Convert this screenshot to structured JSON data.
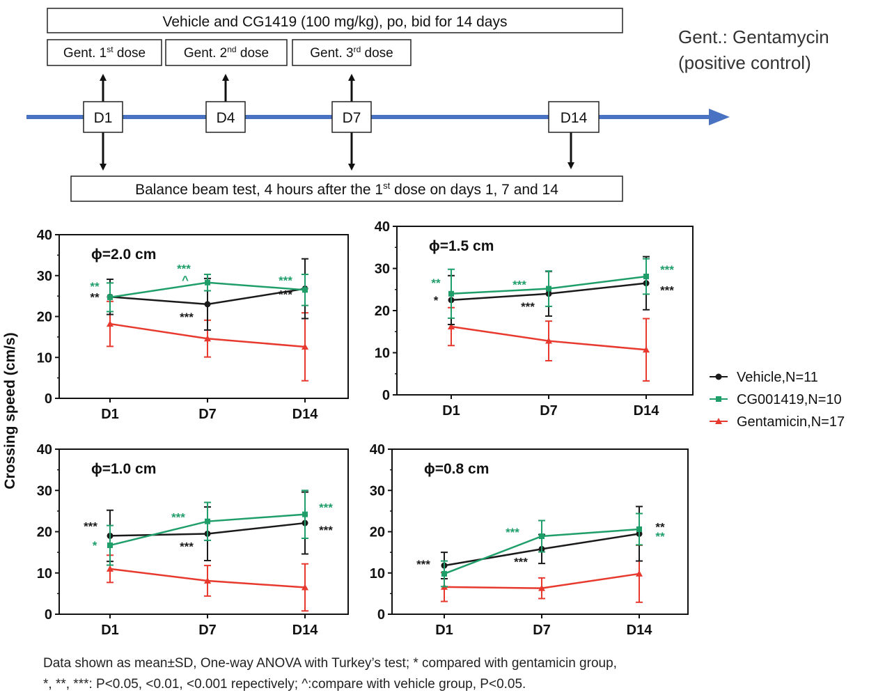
{
  "colors": {
    "vehicle": "#1a1a1a",
    "cg": "#1f9e6a",
    "gent": "#e8392e",
    "timeline": "#4a72c2"
  },
  "protocol": {
    "treatment_box": "Vehicle and CG1419 (100 mg/kg), po, bid for 14 days",
    "gent_dose_prefix": "Gent. ",
    "gent_doses": [
      {
        "num": "1",
        "sup": "st",
        "suffix": " dose"
      },
      {
        "num": "2",
        "sup": "nd",
        "suffix": " dose"
      },
      {
        "num": "3",
        "sup": "rd",
        "suffix": " dose"
      }
    ],
    "days": [
      "D1",
      "D4",
      "D7",
      "D14"
    ],
    "beam_test_pre": "Balance beam test, 4 hours after the 1",
    "beam_test_sup": "st",
    "beam_test_post": " dose on days 1, 7 and 14",
    "abbrev_line1": "Gent.: Gentamycin",
    "abbrev_line2": "(positive control)"
  },
  "chart_data": [
    {
      "type": "line",
      "title": "ϕ=2.0 cm",
      "categories": [
        "D1",
        "D7",
        "D14"
      ],
      "ylim": [
        0,
        40
      ],
      "yticks": [
        0,
        10,
        20,
        30,
        40
      ],
      "ylabel": "Crossing speed (cm/s)",
      "series": [
        {
          "name": "Vehicle,N=11",
          "key": "vehicle",
          "values": [
            24.8,
            23.0,
            26.8
          ],
          "sd": [
            4.3,
            6.3,
            7.3
          ]
        },
        {
          "name": "CG001419,N=10",
          "key": "cg",
          "values": [
            24.7,
            28.3,
            26.5
          ],
          "sd": [
            3.5,
            2.0,
            3.8
          ]
        },
        {
          "name": "Gentamicin,N=17",
          "key": "gent",
          "values": [
            18.2,
            14.6,
            12.6
          ],
          "sd": [
            5.5,
            4.5,
            8.3
          ]
        }
      ],
      "annotations": [
        {
          "text": "**",
          "key": "cg",
          "point": 0,
          "pos": "left-upper"
        },
        {
          "text": "**",
          "key": "vehicle",
          "point": 0,
          "pos": "left-lower"
        },
        {
          "text": "***",
          "key": "cg",
          "point": 1,
          "pos": "above-2"
        },
        {
          "text": "^",
          "key": "cg",
          "point": 1,
          "pos": "above-1"
        },
        {
          "text": "***",
          "key": "vehicle",
          "point": 1,
          "pos": "below-left"
        },
        {
          "text": "***",
          "key": "cg",
          "point": 2,
          "pos": "left-upper-far"
        },
        {
          "text": "***",
          "key": "vehicle",
          "point": 2,
          "pos": "left-lower-far"
        }
      ]
    },
    {
      "type": "line",
      "title": "ϕ=1.5 cm",
      "categories": [
        "D1",
        "D7",
        "D14"
      ],
      "ylim": [
        0,
        40
      ],
      "yticks": [
        0,
        10,
        20,
        30,
        40
      ],
      "ylabel": "Crossing speed (cm/s)",
      "series": [
        {
          "name": "Vehicle,N=11",
          "key": "vehicle",
          "values": [
            22.5,
            24.0,
            26.5
          ],
          "sd": [
            5.8,
            5.3,
            6.3
          ]
        },
        {
          "name": "CG001419,N=10",
          "key": "cg",
          "values": [
            24.0,
            25.2,
            28.1
          ],
          "sd": [
            5.8,
            4.2,
            4.2
          ]
        },
        {
          "name": "Gentamicin,N=17",
          "key": "gent",
          "values": [
            16.2,
            12.8,
            10.7
          ],
          "sd": [
            4.5,
            4.7,
            7.4
          ]
        }
      ],
      "annotations": [
        {
          "text": "**",
          "key": "cg",
          "point": 0,
          "pos": "left-upper"
        },
        {
          "text": "*",
          "key": "vehicle",
          "point": 0,
          "pos": "left-lower"
        },
        {
          "text": "***",
          "key": "cg",
          "point": 1,
          "pos": "above-left"
        },
        {
          "text": "***",
          "key": "vehicle",
          "point": 1,
          "pos": "below-left"
        },
        {
          "text": "***",
          "key": "cg",
          "point": 2,
          "pos": "right-upper"
        },
        {
          "text": "***",
          "key": "vehicle",
          "point": 2,
          "pos": "right-lower"
        }
      ]
    },
    {
      "type": "line",
      "title": "ϕ=1.0 cm",
      "categories": [
        "D1",
        "D7",
        "D14"
      ],
      "ylim": [
        0,
        40
      ],
      "yticks": [
        0,
        10,
        20,
        30,
        40
      ],
      "ylabel": "Crossing speed (cm/s)",
      "series": [
        {
          "name": "Vehicle,N=11",
          "key": "vehicle",
          "values": [
            19.0,
            19.5,
            22.1
          ],
          "sd": [
            6.2,
            6.5,
            7.5
          ]
        },
        {
          "name": "CG001419,N=10",
          "key": "cg",
          "values": [
            16.7,
            22.5,
            24.2
          ],
          "sd": [
            4.8,
            4.6,
            5.8
          ]
        },
        {
          "name": "Gentamicin,N=17",
          "key": "gent",
          "values": [
            11.0,
            8.1,
            6.5
          ],
          "sd": [
            3.3,
            3.7,
            5.7
          ]
        }
      ],
      "annotations": [
        {
          "text": "***",
          "key": "vehicle",
          "point": 0,
          "pos": "left-upper-far"
        },
        {
          "text": "*",
          "key": "cg",
          "point": 0,
          "pos": "left-lower"
        },
        {
          "text": "***",
          "key": "cg",
          "point": 1,
          "pos": "above-left"
        },
        {
          "text": "***",
          "key": "vehicle",
          "point": 1,
          "pos": "below-left"
        },
        {
          "text": "***",
          "key": "cg",
          "point": 2,
          "pos": "right-upper"
        },
        {
          "text": "***",
          "key": "vehicle",
          "point": 2,
          "pos": "right-lower"
        }
      ]
    },
    {
      "type": "line",
      "title": "ϕ=0.8 cm",
      "categories": [
        "D1",
        "D7",
        "D14"
      ],
      "ylim": [
        0,
        40
      ],
      "yticks": [
        0,
        10,
        20,
        30,
        40
      ],
      "ylabel": "Crossing speed (cm/s)",
      "series": [
        {
          "name": "Vehicle,N=11",
          "key": "vehicle",
          "values": [
            11.8,
            15.8,
            19.5
          ],
          "sd": [
            3.2,
            3.5,
            6.6
          ]
        },
        {
          "name": "CG001419,N=10",
          "key": "cg",
          "values": [
            9.8,
            18.9,
            20.6
          ],
          "sd": [
            3.1,
            3.8,
            3.8
          ]
        },
        {
          "name": "Gentamicin,N=17",
          "key": "gent",
          "values": [
            6.6,
            6.3,
            9.8
          ],
          "sd": [
            3.5,
            2.5,
            6.9
          ]
        }
      ],
      "annotations": [
        {
          "text": "***",
          "key": "vehicle",
          "point": 0,
          "pos": "left-far"
        },
        {
          "text": "***",
          "key": "cg",
          "point": 1,
          "pos": "above-left"
        },
        {
          "text": "***",
          "key": "vehicle",
          "point": 1,
          "pos": "below-left"
        },
        {
          "text": "**",
          "key": "vehicle",
          "point": 2,
          "pos": "right-upper"
        },
        {
          "text": "**",
          "key": "cg",
          "point": 2,
          "pos": "right-lower"
        }
      ]
    }
  ],
  "legend": [
    {
      "label": "Vehicle,N=11",
      "key": "vehicle",
      "marker": "circle"
    },
    {
      "label": "CG001419,N=10",
      "key": "cg",
      "marker": "square"
    },
    {
      "label": "Gentamicin,N=17",
      "key": "gent",
      "marker": "triangle"
    }
  ],
  "y_axis_title": "Crossing speed (cm/s)",
  "caption": {
    "line1": "Data shown as mean±SD, One-way ANOVA with Turkey’s test; * compared with gentamicin group,",
    "line2": "*, **, ***: P<0.05, <0.01, <0.001 repectively; ^:compare with vehicle group, P<0.05."
  }
}
